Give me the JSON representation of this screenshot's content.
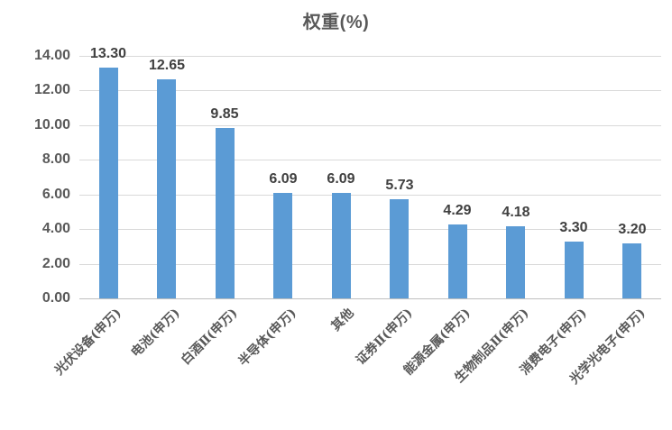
{
  "chart_data": {
    "type": "bar",
    "title": "权重(%)",
    "categories": [
      "光伏设备(申万)",
      "电池(申万)",
      "白酒Ⅱ(申万)",
      "半导体(申万)",
      "其他",
      "证券Ⅱ(申万)",
      "能源金属(申万)",
      "生物制品Ⅱ(申万)",
      "消费电子(申万)",
      "光学光电子(申万)"
    ],
    "values": [
      13.3,
      12.65,
      9.85,
      6.09,
      6.09,
      5.73,
      4.29,
      4.18,
      3.3,
      3.2
    ],
    "value_labels": [
      "13.30",
      "12.65",
      "9.85",
      "6.09",
      "6.09",
      "5.73",
      "4.29",
      "4.18",
      "3.30",
      "3.20"
    ],
    "ylim": [
      0,
      14
    ],
    "ytick_step": 2,
    "ytick_labels": [
      "0.00",
      "2.00",
      "4.00",
      "6.00",
      "8.00",
      "10.00",
      "12.00",
      "14.00"
    ],
    "grid": true,
    "legend_position": "none",
    "xlabel": "",
    "ylabel": "",
    "colors": {
      "bar": "#5B9BD5",
      "gridline": "#D9D9D9",
      "axis_line": "#BFBFBF",
      "tick_label": "#595959",
      "data_label": "#404040",
      "title": "#595959"
    }
  }
}
